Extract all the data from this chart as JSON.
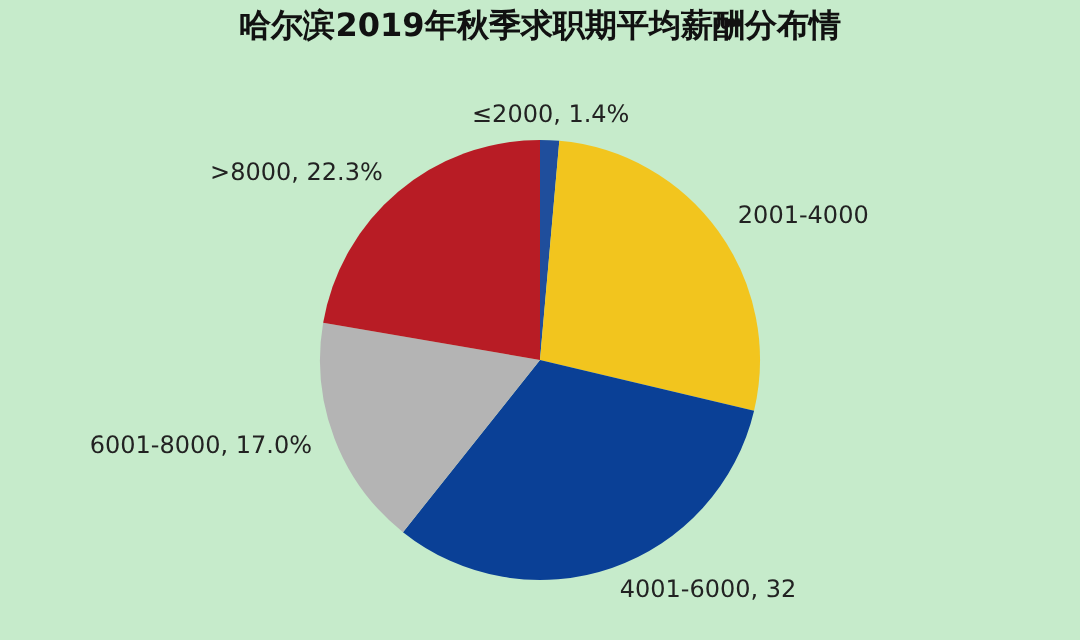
{
  "chart_data": {
    "type": "pie",
    "title": "哈尔滨2019年秋季求职期平均薪酬分布情",
    "categories": [
      "≤2000",
      "2001-4000",
      "4001-6000",
      "6001-8000",
      ">8000"
    ],
    "values": [
      1.4,
      27.3,
      32.0,
      17.0,
      22.3
    ],
    "value_labels": [
      "1.4%",
      null,
      "32",
      "17.0%",
      "22.3%"
    ],
    "colors": [
      "#1f4e9c",
      "#f2c51e",
      "#0a4096",
      "#b4b4b4",
      "#b81c25"
    ],
    "legend": false
  }
}
